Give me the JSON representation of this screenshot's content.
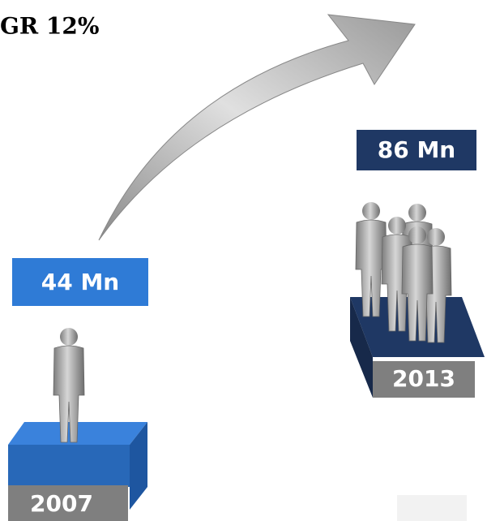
{
  "title": "GR 12%",
  "items": [
    {
      "value_label": "44 Mn",
      "year": "2007"
    },
    {
      "value_label": "86 Mn",
      "year": "2013"
    }
  ]
}
